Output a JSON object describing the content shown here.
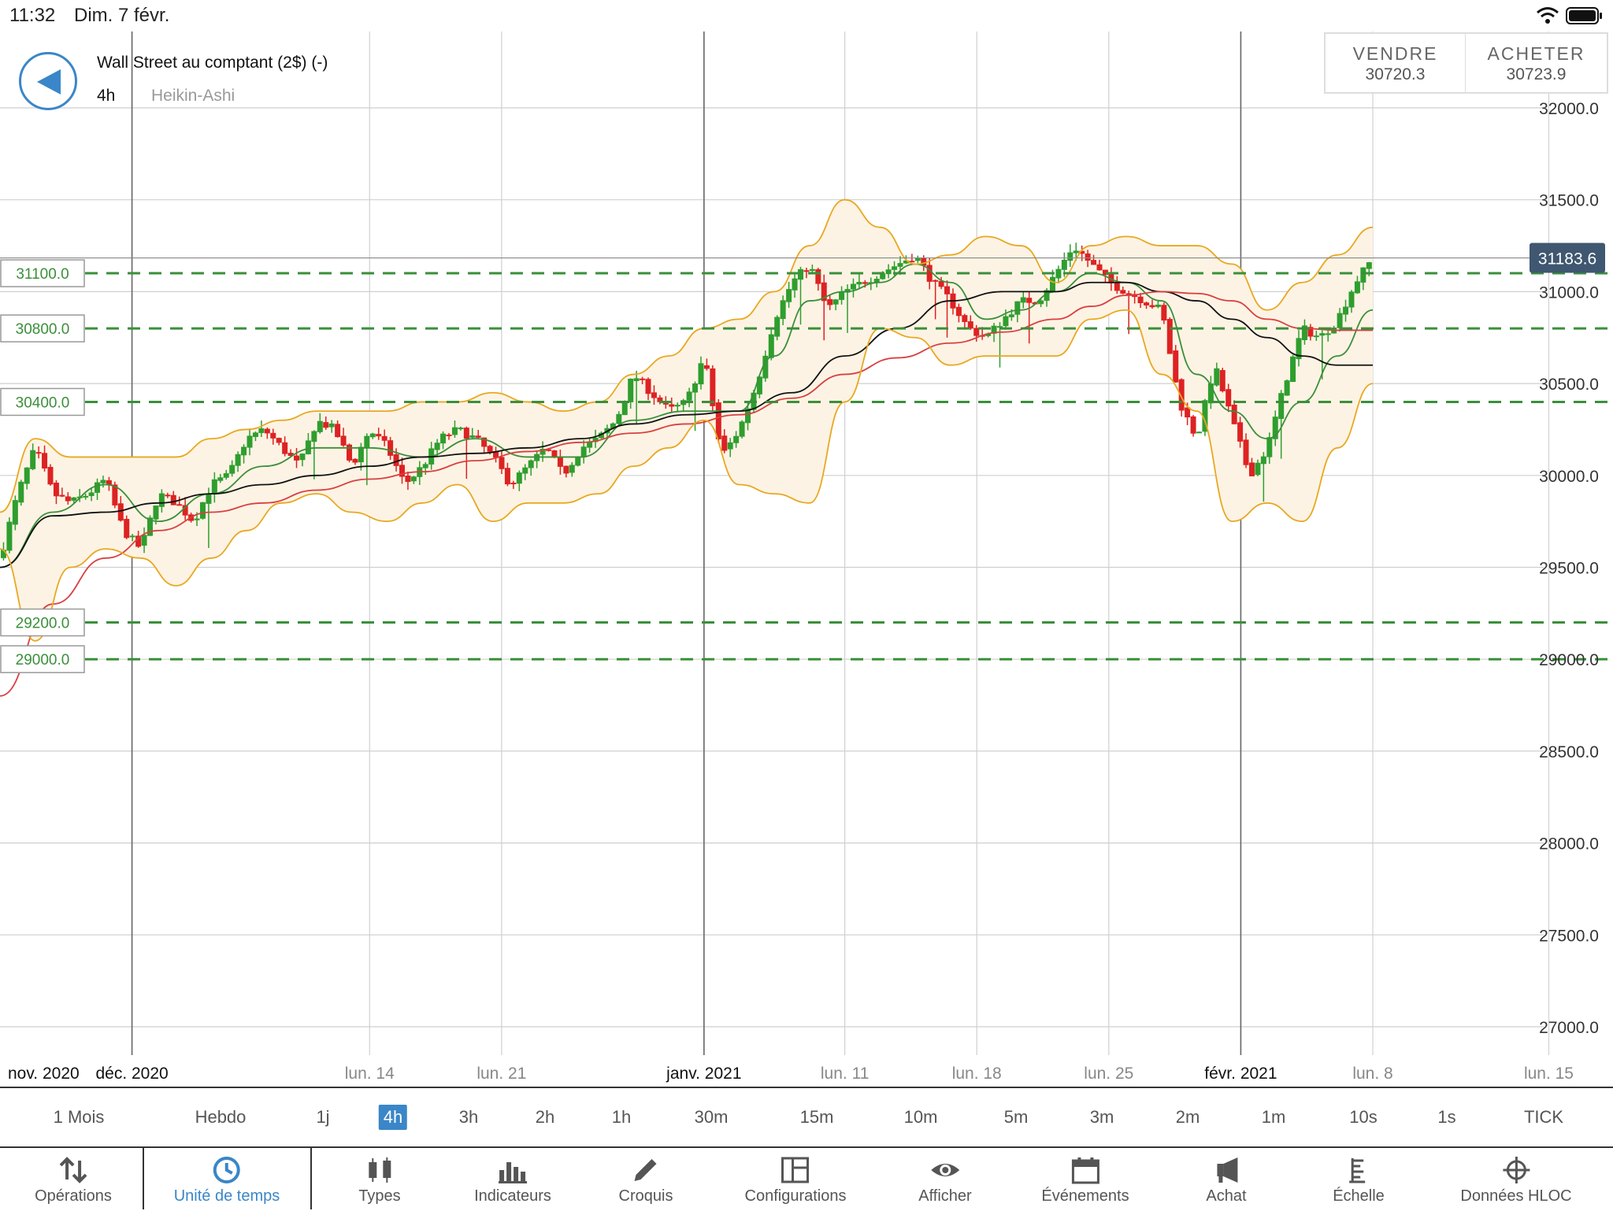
{
  "status_bar": {
    "time": "11:32",
    "date": "Dim. 7 févr."
  },
  "instrument": {
    "name": "Wall Street au comptant (2$) (-)",
    "timeframe": "4h",
    "chart_type": "Heikin-Ashi"
  },
  "trade": {
    "sell_label": "VENDRE",
    "sell_price": "30720.3",
    "buy_label": "ACHETER",
    "buy_price": "30723.9"
  },
  "chart_data": {
    "type": "candlestick",
    "title": "",
    "ylim": [
      26800,
      32150
    ],
    "y_ticks": [
      "32000.0",
      "31500.0",
      "31000.0",
      "30500.0",
      "30000.0",
      "29500.0",
      "29000.0",
      "28500.0",
      "28000.0",
      "27500.0",
      "27000.0"
    ],
    "x_labels": [
      {
        "label": "nov. 2020",
        "bold": true,
        "t": 0
      },
      {
        "label": "déc. 2020",
        "bold": true,
        "t": 7.5
      },
      {
        "label": "lun. 14",
        "bold": false,
        "t": 21
      },
      {
        "label": "lun. 21",
        "bold": false,
        "t": 28.5
      },
      {
        "label": "janv. 2021",
        "bold": true,
        "t": 40
      },
      {
        "label": "lun. 11",
        "bold": false,
        "t": 48
      },
      {
        "label": "lun. 18",
        "bold": false,
        "t": 55.5
      },
      {
        "label": "lun. 25",
        "bold": false,
        "t": 63
      },
      {
        "label": "févr. 2021",
        "bold": true,
        "t": 70.5
      },
      {
        "label": "lun. 8",
        "bold": false,
        "t": 78
      },
      {
        "label": "lun. 15",
        "bold": false,
        "t": 88
      }
    ],
    "x_range": [
      0,
      89.5
    ],
    "current_price": "31183.6",
    "levels": [
      {
        "value": 31100,
        "label": "31100.0"
      },
      {
        "value": 30800,
        "label": "30800.0"
      },
      {
        "value": 30400,
        "label": "30400.0"
      },
      {
        "value": 29200,
        "label": "29200.0"
      },
      {
        "value": 29000,
        "label": "29000.0"
      }
    ],
    "close_path": [
      [
        0,
        29550
      ],
      [
        1,
        29900
      ],
      [
        2,
        30150
      ],
      [
        3,
        29900
      ],
      [
        4,
        29850
      ],
      [
        5,
        29900
      ],
      [
        6,
        29980
      ],
      [
        7,
        29700
      ],
      [
        8,
        29600
      ],
      [
        9,
        29900
      ],
      [
        10,
        29850
      ],
      [
        11,
        29750
      ],
      [
        12,
        29950
      ],
      [
        13,
        30000
      ],
      [
        14,
        30200
      ],
      [
        15,
        30250
      ],
      [
        16,
        30150
      ],
      [
        17,
        30050
      ],
      [
        18,
        30300
      ],
      [
        19,
        30250
      ],
      [
        20,
        30050
      ],
      [
        21,
        30250
      ],
      [
        22,
        30150
      ],
      [
        23,
        29950
      ],
      [
        24,
        30050
      ],
      [
        25,
        30200
      ],
      [
        26,
        30250
      ],
      [
        27,
        30200
      ],
      [
        28,
        30100
      ],
      [
        29,
        29950
      ],
      [
        30,
        30050
      ],
      [
        31,
        30150
      ],
      [
        32,
        30000
      ],
      [
        33,
        30150
      ],
      [
        34,
        30200
      ],
      [
        35,
        30300
      ],
      [
        36,
        30550
      ],
      [
        37,
        30450
      ],
      [
        38,
        30350
      ],
      [
        39,
        30400
      ],
      [
        40,
        30650
      ],
      [
        41,
        30100
      ],
      [
        42,
        30250
      ],
      [
        43,
        30500
      ],
      [
        44,
        30850
      ],
      [
        45,
        31050
      ],
      [
        46,
        31150
      ],
      [
        47,
        30900
      ],
      [
        48,
        31000
      ],
      [
        49,
        31050
      ],
      [
        50,
        31100
      ],
      [
        51,
        31150
      ],
      [
        52,
        31200
      ],
      [
        53,
        31050
      ],
      [
        54,
        30950
      ],
      [
        55,
        30800
      ],
      [
        56,
        30750
      ],
      [
        57,
        30850
      ],
      [
        58,
        30950
      ],
      [
        59,
        30950
      ],
      [
        60,
        31100
      ],
      [
        61,
        31250
      ],
      [
        62,
        31150
      ],
      [
        63,
        31050
      ],
      [
        64,
        31000
      ],
      [
        65,
        30950
      ],
      [
        66,
        30900
      ],
      [
        67,
        30400
      ],
      [
        68,
        30200
      ],
      [
        69,
        30600
      ],
      [
        70,
        30300
      ],
      [
        71,
        30000
      ],
      [
        72,
        30150
      ],
      [
        73,
        30500
      ],
      [
        74,
        30800
      ],
      [
        75,
        30750
      ],
      [
        76,
        30850
      ],
      [
        77,
        31050
      ],
      [
        78,
        31183
      ]
    ],
    "series": [
      {
        "name": "sma_fast",
        "color": "#3a8f3a",
        "points": [
          [
            0,
            29500
          ],
          [
            3,
            29800
          ],
          [
            6,
            29950
          ],
          [
            9,
            29750
          ],
          [
            12,
            29900
          ],
          [
            15,
            30050
          ],
          [
            18,
            30150
          ],
          [
            21,
            30150
          ],
          [
            24,
            30100
          ],
          [
            27,
            30200
          ],
          [
            30,
            30100
          ],
          [
            33,
            30100
          ],
          [
            36,
            30300
          ],
          [
            39,
            30350
          ],
          [
            42,
            30350
          ],
          [
            44,
            30650
          ],
          [
            46,
            30950
          ],
          [
            48,
            31000
          ],
          [
            50,
            31050
          ],
          [
            52,
            31150
          ],
          [
            54,
            31050
          ],
          [
            56,
            30850
          ],
          [
            58,
            30900
          ],
          [
            60,
            31000
          ],
          [
            62,
            31100
          ],
          [
            64,
            31050
          ],
          [
            66,
            30950
          ],
          [
            68,
            30550
          ],
          [
            70,
            30350
          ],
          [
            72,
            30200
          ],
          [
            74,
            30400
          ],
          [
            76,
            30650
          ],
          [
            78,
            30900
          ]
        ]
      },
      {
        "name": "sma_mid",
        "color": "#111111",
        "points": [
          [
            0,
            29500
          ],
          [
            3,
            29780
          ],
          [
            6,
            29800
          ],
          [
            9,
            29850
          ],
          [
            12,
            29900
          ],
          [
            15,
            29950
          ],
          [
            18,
            30000
          ],
          [
            21,
            30050
          ],
          [
            24,
            30100
          ],
          [
            27,
            30120
          ],
          [
            30,
            30150
          ],
          [
            33,
            30200
          ],
          [
            36,
            30280
          ],
          [
            39,
            30330
          ],
          [
            42,
            30350
          ],
          [
            45,
            30450
          ],
          [
            48,
            30650
          ],
          [
            51,
            30800
          ],
          [
            54,
            30950
          ],
          [
            57,
            31000
          ],
          [
            60,
            31000
          ],
          [
            62,
            31050
          ],
          [
            64,
            31050
          ],
          [
            66,
            31000
          ],
          [
            68,
            30950
          ],
          [
            70,
            30850
          ],
          [
            72,
            30750
          ],
          [
            74,
            30650
          ],
          [
            76,
            30600
          ],
          [
            78,
            30600
          ]
        ]
      },
      {
        "name": "sma_slow",
        "color": "#d94040",
        "points": [
          [
            0,
            28800
          ],
          [
            3,
            29300
          ],
          [
            6,
            29550
          ],
          [
            9,
            29700
          ],
          [
            12,
            29800
          ],
          [
            15,
            29850
          ],
          [
            18,
            29920
          ],
          [
            21,
            29980
          ],
          [
            24,
            30020
          ],
          [
            27,
            30080
          ],
          [
            30,
            30130
          ],
          [
            33,
            30180
          ],
          [
            36,
            30230
          ],
          [
            39,
            30280
          ],
          [
            42,
            30330
          ],
          [
            45,
            30420
          ],
          [
            48,
            30550
          ],
          [
            51,
            30640
          ],
          [
            54,
            30720
          ],
          [
            57,
            30780
          ],
          [
            60,
            30850
          ],
          [
            62,
            30920
          ],
          [
            64,
            30980
          ],
          [
            66,
            31000
          ],
          [
            68,
            30990
          ],
          [
            70,
            30950
          ],
          [
            72,
            30850
          ],
          [
            74,
            30800
          ],
          [
            76,
            30790
          ],
          [
            78,
            30790
          ]
        ]
      },
      {
        "name": "bb_upper",
        "color": "#e8a820",
        "points": [
          [
            0,
            29800
          ],
          [
            2,
            30200
          ],
          [
            4,
            30100
          ],
          [
            6,
            30100
          ],
          [
            8,
            30100
          ],
          [
            10,
            30100
          ],
          [
            12,
            30200
          ],
          [
            14,
            30250
          ],
          [
            16,
            30300
          ],
          [
            18,
            30350
          ],
          [
            20,
            30350
          ],
          [
            22,
            30350
          ],
          [
            24,
            30400
          ],
          [
            26,
            30400
          ],
          [
            28,
            30450
          ],
          [
            30,
            30400
          ],
          [
            32,
            30350
          ],
          [
            34,
            30400
          ],
          [
            36,
            30550
          ],
          [
            38,
            30650
          ],
          [
            40,
            30800
          ],
          [
            42,
            30850
          ],
          [
            44,
            31000
          ],
          [
            46,
            31250
          ],
          [
            48,
            31500
          ],
          [
            50,
            31350
          ],
          [
            52,
            31150
          ],
          [
            54,
            31200
          ],
          [
            56,
            31300
          ],
          [
            58,
            31250
          ],
          [
            60,
            31050
          ],
          [
            62,
            31250
          ],
          [
            64,
            31300
          ],
          [
            66,
            31250
          ],
          [
            68,
            31250
          ],
          [
            70,
            31150
          ],
          [
            72,
            30900
          ],
          [
            74,
            31050
          ],
          [
            76,
            31200
          ],
          [
            78,
            31350
          ]
        ]
      },
      {
        "name": "bb_lower",
        "color": "#e8a820",
        "points": [
          [
            0,
            29600
          ],
          [
            2,
            29100
          ],
          [
            4,
            29500
          ],
          [
            6,
            29600
          ],
          [
            8,
            29550
          ],
          [
            10,
            29400
          ],
          [
            12,
            29550
          ],
          [
            14,
            29700
          ],
          [
            16,
            29850
          ],
          [
            18,
            29900
          ],
          [
            20,
            29800
          ],
          [
            22,
            29750
          ],
          [
            24,
            29850
          ],
          [
            26,
            29950
          ],
          [
            28,
            29750
          ],
          [
            30,
            29850
          ],
          [
            32,
            29850
          ],
          [
            34,
            29900
          ],
          [
            36,
            30050
          ],
          [
            38,
            30150
          ],
          [
            40,
            30300
          ],
          [
            42,
            29950
          ],
          [
            44,
            29900
          ],
          [
            46,
            29850
          ],
          [
            48,
            30400
          ],
          [
            50,
            30800
          ],
          [
            52,
            30750
          ],
          [
            54,
            30600
          ],
          [
            56,
            30650
          ],
          [
            58,
            30650
          ],
          [
            60,
            30650
          ],
          [
            62,
            30850
          ],
          [
            64,
            30900
          ],
          [
            66,
            30550
          ],
          [
            68,
            30350
          ],
          [
            70,
            29750
          ],
          [
            72,
            29850
          ],
          [
            74,
            29750
          ],
          [
            76,
            30150
          ],
          [
            78,
            30500
          ]
        ]
      }
    ]
  },
  "timeframes": [
    "1 Mois",
    "Hebdo",
    "1j",
    "4h",
    "3h",
    "2h",
    "1h",
    "30m",
    "15m",
    "10m",
    "5m",
    "3m",
    "2m",
    "1m",
    "10s",
    "1s",
    "TICK"
  ],
  "active_timeframe": "4h",
  "toolbar": [
    {
      "label": "Opérations",
      "icon": "swap-arrows-icon"
    },
    {
      "label": "Unité de temps",
      "icon": "clock-icon"
    },
    {
      "label": "Types",
      "icon": "candlestick-icon"
    },
    {
      "label": "Indicateurs",
      "icon": "bar-chart-icon"
    },
    {
      "label": "Croquis",
      "icon": "pencil-icon"
    },
    {
      "label": "Configurations",
      "icon": "layout-icon"
    },
    {
      "label": "Afficher",
      "icon": "eye-icon"
    },
    {
      "label": "Événements",
      "icon": "calendar-icon"
    },
    {
      "label": "Achat",
      "icon": "megaphone-icon"
    },
    {
      "label": "Échelle",
      "icon": "scale-icon"
    },
    {
      "label": "Données HLOC",
      "icon": "crosshair-icon"
    }
  ],
  "active_tool": "Unité de temps",
  "colors": {
    "up": "#2e9e2e",
    "down": "#dd2222",
    "accent": "#3a86c8",
    "level": "#3a8f3a",
    "band_fill": "#fdf3e4"
  }
}
